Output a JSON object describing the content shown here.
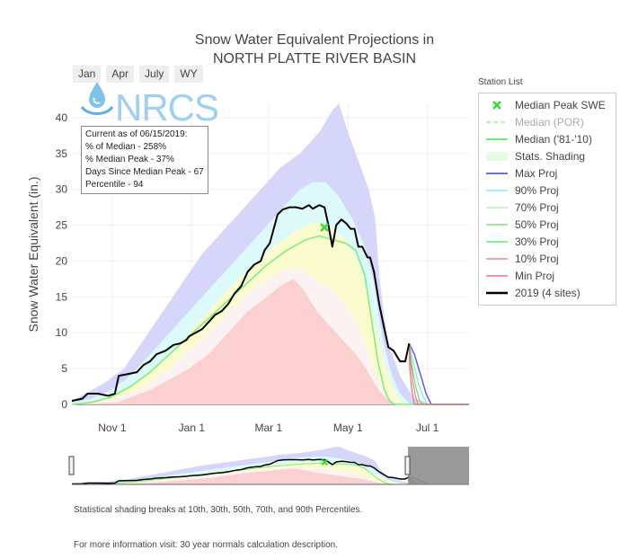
{
  "title_line1": "Snow Water Equivalent Projections in",
  "title_line2": "NORTH PLATTE RIVER BASIN",
  "range_buttons": [
    "Jan",
    "Apr",
    "July",
    "WY"
  ],
  "logo_text": "NRCS",
  "legend_title": "Station List",
  "legend": [
    {
      "label": "Median Peak SWE",
      "color": "#33dd33",
      "kind": "marker",
      "muted": false
    },
    {
      "label": "Median (POR)",
      "color": "#bbeebb",
      "kind": "dash",
      "muted": true
    },
    {
      "label": "Median ('81-'10)",
      "color": "#66ee66",
      "kind": "line",
      "muted": false
    },
    {
      "label": "Stats. Shading",
      "color": "#e4fce4",
      "kind": "fill",
      "muted": false
    },
    {
      "label": "Max Proj",
      "color": "#6a6cee",
      "kind": "line",
      "muted": false
    },
    {
      "label": "90% Proj",
      "color": "#9ff5f5",
      "kind": "line",
      "muted": false
    },
    {
      "label": "70% Proj",
      "color": "#ccf6c4",
      "kind": "line",
      "muted": false
    },
    {
      "label": "50% Proj",
      "color": "#99ee99",
      "kind": "line",
      "muted": false
    },
    {
      "label": "30% Proj",
      "color": "#8aef8a",
      "kind": "line",
      "muted": false
    },
    {
      "label": "10% Proj",
      "color": "#f29f9f",
      "kind": "line",
      "muted": false
    },
    {
      "label": "Min Proj",
      "color": "#ee9999",
      "kind": "line",
      "muted": false
    },
    {
      "label": "2019 (4 sites)",
      "color": "#000000",
      "kind": "thick",
      "muted": false
    }
  ],
  "annotation": [
    "Current as of 06/15/2019:",
    "% of Median - 258%",
    "% Median Peak - 37%",
    "Days Since Median Peak - 67",
    "Percentile - 94"
  ],
  "footnote1": "Statistical shading breaks at 10th, 30th, 50th, 70th, and 90th Percentiles.",
  "footnote2": "For more information visit: 30 year normals calculation description.",
  "chart_data": {
    "type": "area",
    "ylabel": "Snow Water Equivalent (in.)",
    "xlabel": "",
    "y_ticks": [
      0,
      5,
      10,
      15,
      20,
      25,
      30,
      35,
      40
    ],
    "ylim": [
      0,
      42
    ],
    "x_tick_labels": [
      "Nov 1",
      "Jan 1",
      "Mar 1",
      "May 1",
      "Jul 1"
    ],
    "x_tick_days": [
      31,
      92,
      151,
      212,
      273
    ],
    "xlim_days": [
      0,
      305
    ],
    "grid": true,
    "median_peak": {
      "day": 194,
      "value": 24.7
    },
    "bands": [
      {
        "name": "Max Proj",
        "color": "#d6d6fb",
        "upper": [
          [
            0,
            0.5
          ],
          [
            10,
            1.5
          ],
          [
            25,
            3
          ],
          [
            40,
            5
          ],
          [
            55,
            9
          ],
          [
            70,
            13
          ],
          [
            85,
            17
          ],
          [
            100,
            21
          ],
          [
            115,
            24
          ],
          [
            130,
            27
          ],
          [
            145,
            30
          ],
          [
            160,
            33
          ],
          [
            175,
            35
          ],
          [
            190,
            38
          ],
          [
            200,
            41
          ],
          [
            205,
            42
          ],
          [
            212,
            38
          ],
          [
            220,
            34
          ],
          [
            228,
            30
          ],
          [
            233,
            26
          ],
          [
            236,
            18
          ],
          [
            240,
            12
          ],
          [
            244,
            8
          ],
          [
            252,
            4
          ],
          [
            262,
            1
          ],
          [
            275,
            0
          ],
          [
            305,
            0
          ]
        ],
        "lower": [
          [
            0,
            0
          ],
          [
            305,
            0
          ]
        ]
      },
      {
        "name": "90% Proj",
        "color": "#dcfafa",
        "upper": [
          [
            0,
            0.2
          ],
          [
            15,
            0.8
          ],
          [
            30,
            2
          ],
          [
            45,
            4
          ],
          [
            60,
            7
          ],
          [
            75,
            10
          ],
          [
            90,
            13
          ],
          [
            105,
            16
          ],
          [
            120,
            19
          ],
          [
            135,
            22
          ],
          [
            150,
            25
          ],
          [
            165,
            28
          ],
          [
            175,
            30
          ],
          [
            185,
            31
          ],
          [
            195,
            31
          ],
          [
            205,
            29
          ],
          [
            215,
            26
          ],
          [
            225,
            22
          ],
          [
            232,
            17
          ],
          [
            236,
            12
          ],
          [
            240,
            8
          ],
          [
            246,
            4
          ],
          [
            252,
            1.5
          ],
          [
            260,
            0
          ],
          [
            305,
            0
          ]
        ],
        "lower": [
          [
            0,
            0
          ],
          [
            305,
            0
          ]
        ]
      },
      {
        "name": "70% Proj",
        "color": "#fbfbd0",
        "upper": [
          [
            0,
            0.1
          ],
          [
            20,
            0.6
          ],
          [
            35,
            1.5
          ],
          [
            50,
            3
          ],
          [
            65,
            5.5
          ],
          [
            80,
            8
          ],
          [
            95,
            11
          ],
          [
            110,
            14
          ],
          [
            125,
            17
          ],
          [
            140,
            19.5
          ],
          [
            155,
            22
          ],
          [
            170,
            24
          ],
          [
            180,
            25
          ],
          [
            190,
            25.5
          ],
          [
            200,
            24.5
          ],
          [
            210,
            23
          ],
          [
            220,
            20
          ],
          [
            228,
            15
          ],
          [
            234,
            10
          ],
          [
            240,
            6
          ],
          [
            246,
            2.5
          ],
          [
            252,
            0.5
          ],
          [
            258,
            0
          ],
          [
            305,
            0
          ]
        ],
        "lower": [
          [
            0,
            0
          ],
          [
            305,
            0
          ]
        ]
      },
      {
        "name": "30% Proj",
        "color": "#fcf2f2",
        "upper": [
          [
            0,
            0.1
          ],
          [
            30,
            0.5
          ],
          [
            45,
            1.5
          ],
          [
            60,
            3
          ],
          [
            75,
            5
          ],
          [
            90,
            7.5
          ],
          [
            105,
            10
          ],
          [
            120,
            13
          ],
          [
            135,
            15.5
          ],
          [
            150,
            17.5
          ],
          [
            160,
            18.5
          ],
          [
            170,
            19
          ],
          [
            180,
            18.5
          ],
          [
            190,
            17
          ],
          [
            200,
            16
          ],
          [
            210,
            14
          ],
          [
            220,
            11
          ],
          [
            228,
            7
          ],
          [
            234,
            4
          ],
          [
            240,
            2
          ],
          [
            246,
            0.5
          ],
          [
            252,
            0
          ],
          [
            305,
            0
          ]
        ],
        "lower": [
          [
            0,
            0
          ],
          [
            305,
            0
          ]
        ]
      },
      {
        "name": "10% Proj",
        "color": "#fbd0d0",
        "upper": [
          [
            0,
            0
          ],
          [
            35,
            0.3
          ],
          [
            45,
            1
          ],
          [
            60,
            2
          ],
          [
            75,
            3.5
          ],
          [
            90,
            5
          ],
          [
            105,
            7
          ],
          [
            120,
            10
          ],
          [
            135,
            13
          ],
          [
            150,
            15
          ],
          [
            160,
            16.5
          ],
          [
            170,
            17.5
          ],
          [
            178,
            16
          ],
          [
            188,
            13
          ],
          [
            198,
            11
          ],
          [
            208,
            9
          ],
          [
            218,
            7
          ],
          [
            226,
            5
          ],
          [
            232,
            3
          ],
          [
            238,
            1.5
          ],
          [
            244,
            0.5
          ],
          [
            250,
            0
          ],
          [
            305,
            0
          ]
        ],
        "lower": [
          [
            0,
            0
          ],
          [
            305,
            0
          ]
        ]
      }
    ],
    "series": [
      {
        "name": "Median ('81-'10)",
        "color": "#77ee77",
        "width": 1.5,
        "points": [
          [
            0,
            0
          ],
          [
            15,
            0.3
          ],
          [
            30,
            1
          ],
          [
            45,
            2.5
          ],
          [
            60,
            4.5
          ],
          [
            75,
            7
          ],
          [
            90,
            9.5
          ],
          [
            105,
            12
          ],
          [
            120,
            14.5
          ],
          [
            135,
            17
          ],
          [
            150,
            19.5
          ],
          [
            165,
            21.5
          ],
          [
            180,
            23
          ],
          [
            190,
            23.5
          ],
          [
            200,
            23
          ],
          [
            210,
            22.5
          ],
          [
            218,
            21.5
          ],
          [
            225,
            18
          ],
          [
            230,
            12
          ],
          [
            235,
            6
          ],
          [
            240,
            2
          ],
          [
            244,
            0.5
          ],
          [
            248,
            0
          ],
          [
            305,
            0
          ]
        ]
      },
      {
        "name": "Max Proj",
        "color": "#5b5bee",
        "width": 1.5,
        "points": [
          [
            259,
            8.5
          ],
          [
            263,
            7
          ],
          [
            268,
            4
          ],
          [
            272,
            1.5
          ],
          [
            276,
            0
          ],
          [
            305,
            0
          ]
        ]
      },
      {
        "name": "90% Proj",
        "color": "#7ee6e6",
        "width": 1.2,
        "points": [
          [
            259,
            8.5
          ],
          [
            262,
            6
          ],
          [
            266,
            3
          ],
          [
            270,
            1
          ],
          [
            273,
            0
          ],
          [
            305,
            0
          ]
        ]
      },
      {
        "name": "50% Proj",
        "color": "#66dd66",
        "width": 1.2,
        "points": [
          [
            259,
            8.5
          ],
          [
            261,
            5.5
          ],
          [
            264,
            2.5
          ],
          [
            267,
            0.5
          ],
          [
            270,
            0
          ],
          [
            305,
            0
          ]
        ]
      },
      {
        "name": "10% Proj",
        "color": "#e88080",
        "width": 1.2,
        "points": [
          [
            259,
            8.5
          ],
          [
            260,
            6
          ],
          [
            262,
            3
          ],
          [
            264,
            1
          ],
          [
            266,
            0
          ],
          [
            305,
            0
          ]
        ]
      },
      {
        "name": "Min Proj",
        "color": "#dd7777",
        "width": 1.2,
        "points": [
          [
            259,
            8.5
          ],
          [
            259.5,
            5
          ],
          [
            261,
            2
          ],
          [
            263,
            0
          ],
          [
            305,
            0
          ]
        ]
      },
      {
        "name": "2019 (4 sites)",
        "color": "#000000",
        "width": 2,
        "points": [
          [
            0,
            0.5
          ],
          [
            8,
            0.8
          ],
          [
            12,
            1.5
          ],
          [
            20,
            1.5
          ],
          [
            28,
            1.2
          ],
          [
            33,
            1.5
          ],
          [
            36,
            4
          ],
          [
            42,
            4.2
          ],
          [
            50,
            4.5
          ],
          [
            55,
            5.5
          ],
          [
            60,
            6
          ],
          [
            65,
            7
          ],
          [
            72,
            7.5
          ],
          [
            78,
            8.3
          ],
          [
            83,
            8.5
          ],
          [
            88,
            9
          ],
          [
            90,
            9.5
          ],
          [
            95,
            10
          ],
          [
            100,
            10.5
          ],
          [
            105,
            11.5
          ],
          [
            110,
            12.5
          ],
          [
            115,
            13
          ],
          [
            120,
            14
          ],
          [
            125,
            15.5
          ],
          [
            130,
            16.5
          ],
          [
            135,
            18.5
          ],
          [
            140,
            19.5
          ],
          [
            145,
            20
          ],
          [
            148,
            21.5
          ],
          [
            152,
            22.5
          ],
          [
            155,
            24.5
          ],
          [
            158,
            26.5
          ],
          [
            162,
            27.2
          ],
          [
            167,
            27.5
          ],
          [
            172,
            27.5
          ],
          [
            177,
            27.3
          ],
          [
            182,
            27.8
          ],
          [
            185,
            27.3
          ],
          [
            190,
            27.8
          ],
          [
            194,
            27.5
          ],
          [
            197,
            25
          ],
          [
            200,
            22
          ],
          [
            203,
            25
          ],
          [
            207,
            25.8
          ],
          [
            211,
            25.2
          ],
          [
            214,
            24.5
          ],
          [
            217,
            24.5
          ],
          [
            220,
            22
          ],
          [
            223,
            22
          ],
          [
            227,
            20.5
          ],
          [
            229,
            20.5
          ],
          [
            232,
            18.5
          ],
          [
            236,
            14
          ],
          [
            240,
            10.5
          ],
          [
            243,
            8
          ],
          [
            247,
            7.5
          ],
          [
            252,
            6
          ],
          [
            256,
            6
          ],
          [
            259,
            8.5
          ]
        ]
      }
    ]
  }
}
